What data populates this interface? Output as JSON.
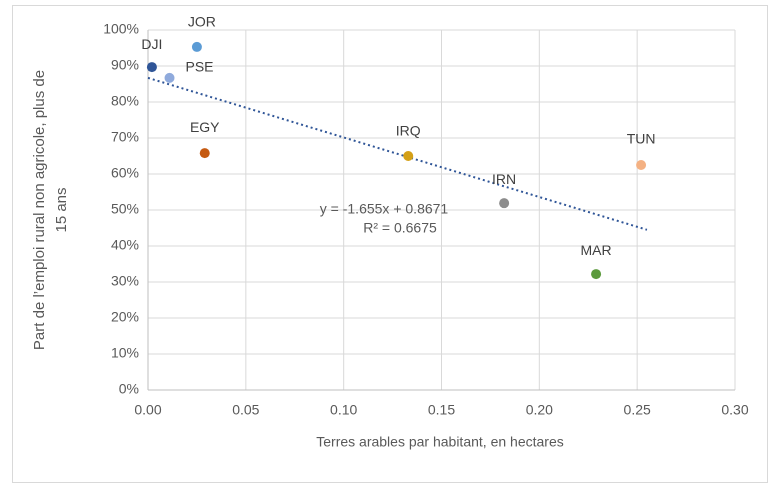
{
  "chart_data": {
    "type": "scatter",
    "xlabel": "Terres arables par habitant, en hectares",
    "ylabel": [
      "Part de l’emploi rural non agricole, plus de",
      "15 ans"
    ],
    "labels": [
      "DJI",
      "JOR",
      "PSE",
      "EGY",
      "IRQ",
      "IRN",
      "MAR",
      "TUN"
    ],
    "x": [
      0.002,
      0.025,
      0.011,
      0.029,
      0.133,
      0.182,
      0.229,
      0.252
    ],
    "values": [
      89.7,
      95.3,
      86.7,
      65.8,
      65.0,
      51.9,
      32.2,
      62.5
    ],
    "colors": [
      "#2f5597",
      "#5b9bd5",
      "#8faadc",
      "#c55a11",
      "#d4a017",
      "#8c8c8c",
      "#5b9a3c",
      "#f4b183"
    ],
    "trendline": {
      "x": [
        0,
        0.255
      ],
      "values": [
        86.7,
        44.5
      ],
      "color": "#2f5597",
      "equation": "y = -1.655x + 0.8671",
      "r2": "R² = 0.6675"
    },
    "xlim": [
      0,
      0.3
    ],
    "xticks": [
      {
        "value": 0,
        "label": "0.00"
      },
      0.05,
      {
        "value": 0.1,
        "label": "0.10"
      },
      0.15,
      {
        "value": 0.2,
        "label": "0.20"
      },
      0.25,
      {
        "value": 0.3,
        "label": "0.30"
      }
    ],
    "ylim": [
      0,
      100
    ],
    "yticks": [
      {
        "value": 0,
        "label": "0%"
      },
      {
        "value": 10,
        "label": "10%"
      },
      {
        "value": 20,
        "label": "20%"
      },
      {
        "value": 30,
        "label": "30%"
      },
      {
        "value": 40,
        "label": "40%"
      },
      {
        "value": 50,
        "label": "50%"
      },
      {
        "value": 60,
        "label": "60%"
      },
      {
        "value": 70,
        "label": "70%"
      },
      {
        "value": 80,
        "label": "80%"
      },
      {
        "value": 90,
        "label": "90%"
      },
      {
        "value": 100,
        "label": "100%"
      }
    ],
    "grid": true
  }
}
